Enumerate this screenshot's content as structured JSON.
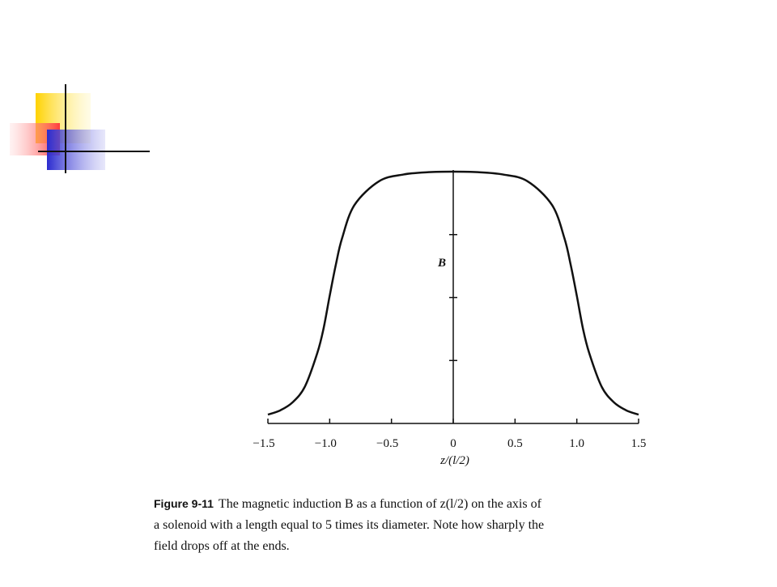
{
  "chart_data": {
    "type": "line",
    "xlabel": "z/(l/2)",
    "ylabel": "B",
    "x": [
      -1.5,
      -1.4,
      -1.3,
      -1.2,
      -1.1,
      -1.05,
      -1.0,
      -0.95,
      -0.9,
      -0.8,
      -0.6,
      -0.4,
      -0.2,
      0,
      0.2,
      0.4,
      0.6,
      0.8,
      0.9,
      0.95,
      1.0,
      1.05,
      1.1,
      1.2,
      1.3,
      1.4,
      1.5
    ],
    "series": [
      {
        "color": "#111111",
        "values": [
          0.035,
          0.052,
          0.084,
          0.147,
          0.28,
          0.376,
          0.507,
          0.631,
          0.735,
          0.867,
          0.962,
          0.989,
          0.998,
          1.0,
          0.998,
          0.989,
          0.962,
          0.867,
          0.735,
          0.631,
          0.507,
          0.376,
          0.28,
          0.147,
          0.084,
          0.052,
          0.035
        ]
      }
    ],
    "xlim": [
      -1.5,
      1.5
    ],
    "xticks": [
      {
        "value": -1.5,
        "label": "−1.5"
      },
      {
        "value": -1.0,
        "label": "−1.0"
      },
      {
        "value": -0.5,
        "label": "−0.5"
      },
      0,
      {
        "value": 0.5,
        "label": "0.5"
      },
      {
        "value": 1.0,
        "label": "1.0"
      },
      {
        "value": 1.5,
        "label": "1.5"
      }
    ],
    "ylim": [
      0,
      1.0
    ],
    "yticks": [
      0.25,
      0.5,
      0.75,
      1.0
    ],
    "caption": {
      "label": "Figure 9-11",
      "lines": [
        "The magnetic induction B as a function of z(l/2) on the axis of",
        "a solenoid with a length equal to 5 times its diameter. Note how sharply the",
        "field drops off at the ends."
      ]
    }
  }
}
